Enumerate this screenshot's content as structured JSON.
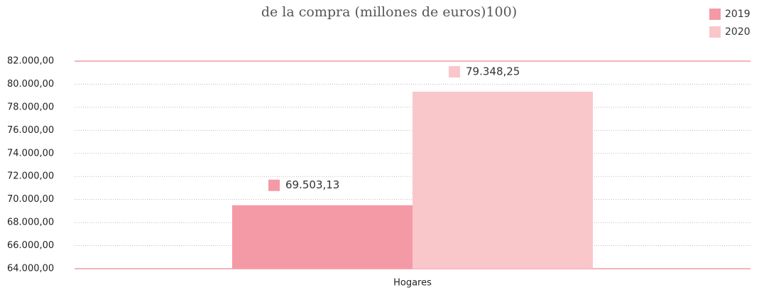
{
  "chart_data": {
    "type": "bar",
    "title": "de la compra (millones de euros)100)",
    "categories": [
      "Hogares"
    ],
    "series": [
      {
        "name": "2019",
        "color": "#f49aa6",
        "values": [
          69503.13
        ],
        "value_labels": [
          "69.503,13"
        ]
      },
      {
        "name": "2020",
        "color": "#f9c6ca",
        "values": [
          79348.25
        ],
        "value_labels": [
          "79.348,25"
        ]
      }
    ],
    "ylim": [
      64000,
      82000
    ],
    "yticks": [
      {
        "value": 64000,
        "label": "64.000,00"
      },
      {
        "value": 66000,
        "label": "66.000,00"
      },
      {
        "value": 68000,
        "label": "68.000,00"
      },
      {
        "value": 70000,
        "label": "70.000,00"
      },
      {
        "value": 72000,
        "label": "72.000,00"
      },
      {
        "value": 74000,
        "label": "74.000,00"
      },
      {
        "value": 76000,
        "label": "76.000,00"
      },
      {
        "value": 78000,
        "label": "78.000,00"
      },
      {
        "value": 80000,
        "label": "80.000,00"
      },
      {
        "value": 82000,
        "label": "82.000,00"
      }
    ],
    "grid": true,
    "legend": "top-right"
  }
}
